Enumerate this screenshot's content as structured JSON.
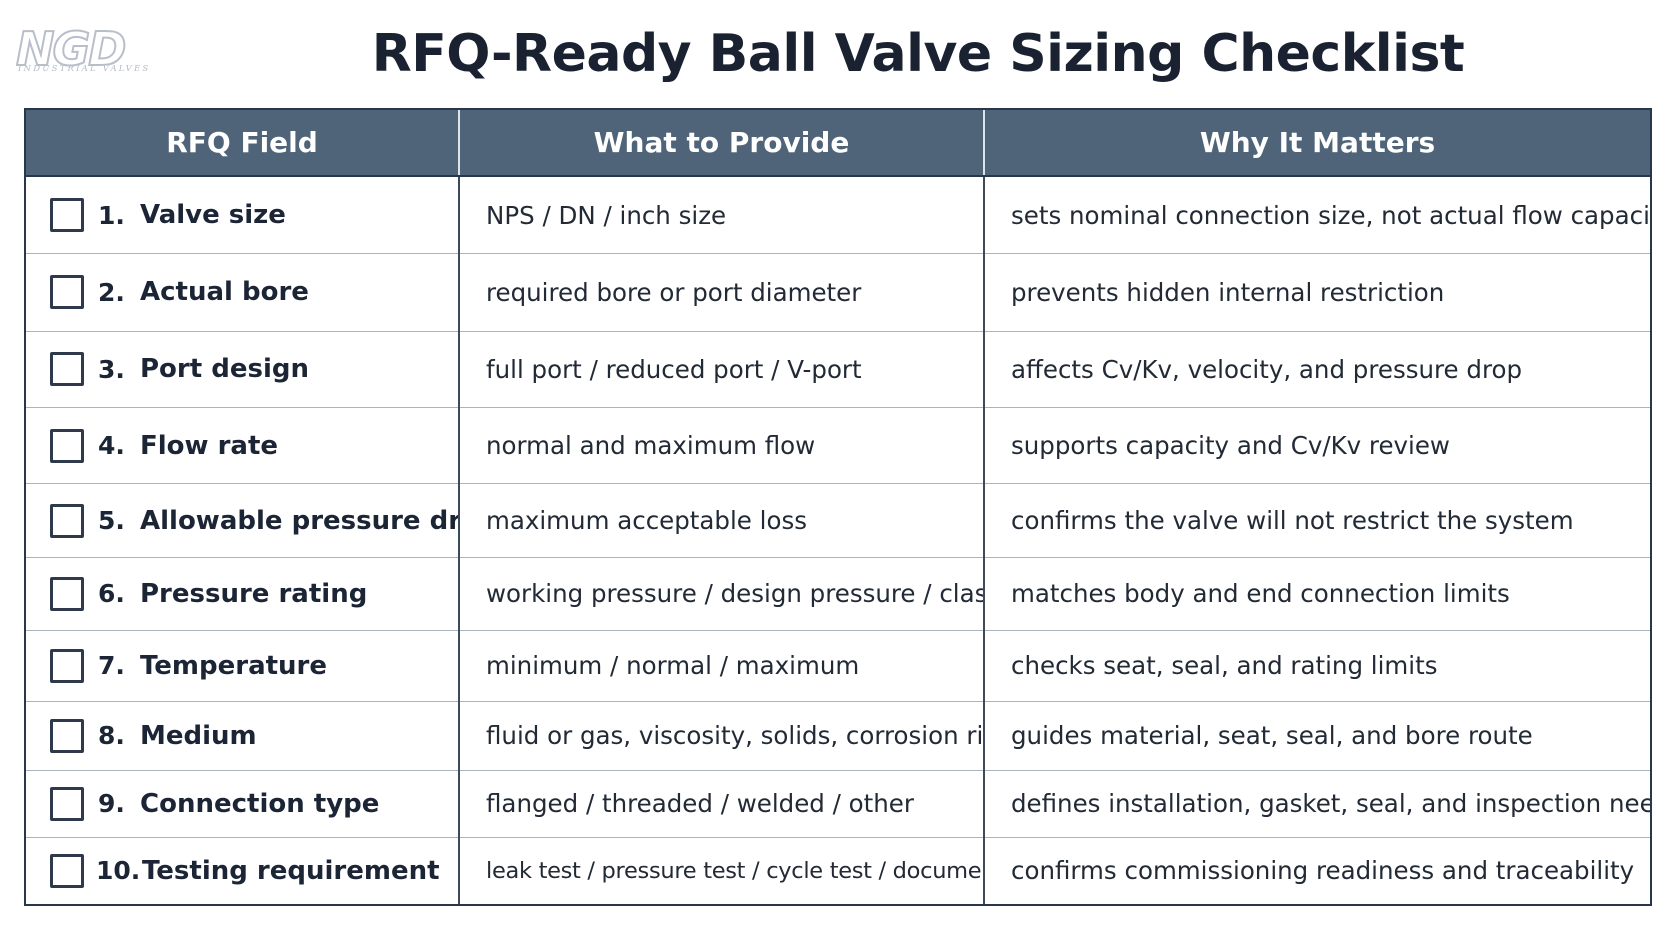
{
  "logo": {
    "mark": "NGD",
    "tagline": "INDUSTRIAL VALVES"
  },
  "title": "RFQ-Ready Ball Valve Sizing Checklist",
  "table": {
    "headers": [
      "RFQ Field",
      "What to Provide",
      "Why It Matters"
    ],
    "rows": [
      {
        "num": "1.",
        "field": "Valve size",
        "checked": false,
        "provide": "NPS / DN / inch size",
        "why": "sets nominal connection size, not actual flow capacity"
      },
      {
        "num": "2.",
        "field": "Actual bore",
        "checked": false,
        "provide": "required bore or port diameter",
        "why": "prevents hidden internal restriction"
      },
      {
        "num": "3.",
        "field": "Port design",
        "checked": false,
        "provide": "full port / reduced port / V-port",
        "why": "affects Cv/Kv, velocity, and pressure drop"
      },
      {
        "num": "4.",
        "field": "Flow rate",
        "checked": false,
        "provide": "normal and maximum flow",
        "why": "supports capacity and Cv/Kv review"
      },
      {
        "num": "5.",
        "field": "Allowable pressure drop",
        "checked": false,
        "provide": "maximum acceptable loss",
        "why": "confirms the valve will not restrict the system"
      },
      {
        "num": "6.",
        "field": "Pressure rating",
        "checked": false,
        "provide": "working pressure / design pressure / class",
        "why": "matches body and end connection limits"
      },
      {
        "num": "7.",
        "field": "Temperature",
        "checked": false,
        "provide": "minimum / normal / maximum",
        "why": "checks seat, seal, and rating limits"
      },
      {
        "num": "8.",
        "field": "Medium",
        "checked": false,
        "provide": "fluid or gas, viscosity, solids, corrosion risk",
        "why": "guides material, seat, seal, and bore route"
      },
      {
        "num": "9.",
        "field": "Connection type",
        "checked": false,
        "provide": "flanged / threaded / welded / other",
        "why": "defines installation, gasket, seal, and inspection needs"
      },
      {
        "num": "10.",
        "field": "Testing requirement",
        "checked": false,
        "provide": "leak test / pressure test / cycle test / documentation",
        "why": "confirms commissioning readiness and traceability"
      }
    ]
  },
  "colors": {
    "header_bg": "#4f6479",
    "header_text": "#ffffff",
    "border": "#28374c",
    "title_text": "#1a2231"
  }
}
